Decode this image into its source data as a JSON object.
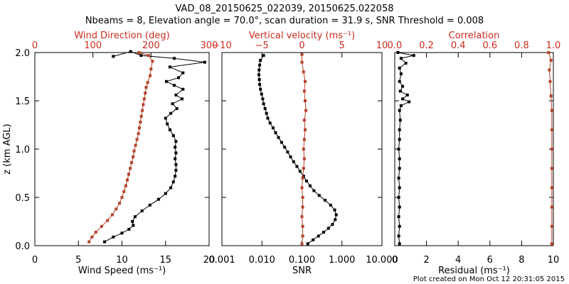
{
  "title_line1": "VAD_08_20150625_022039, 20150625.022058",
  "title_line2": "Nbeams = 8, Elevation angle = 70.0°, scan duration = 31.9 s, SNR Threshold = 0.008",
  "footer": "Plot created on Mon Oct 12 20:31:05 2015",
  "colors": {
    "black": "#000000",
    "red": "#b5422a",
    "axis_red": "#cc2b1c"
  },
  "chart_data": [
    {
      "type": "line",
      "panel": "left",
      "ylabel": "z (km AGL)",
      "ylim": [
        0.0,
        2.0
      ],
      "yticks": [
        "0.0",
        "0.5",
        "1.0",
        "1.5",
        "2.0"
      ],
      "bottom_axis": {
        "label": "Wind Speed (ms⁻¹)",
        "range": [
          0,
          20
        ],
        "ticks": [
          "0",
          "5",
          "10",
          "15",
          "20"
        ]
      },
      "top_axis": {
        "label": "Wind Direction (deg)",
        "range": [
          0,
          360
        ],
        "ticks": [
          "0",
          "100",
          "200",
          "300"
        ],
        "color": "red"
      },
      "series": [
        {
          "axis": "bottom",
          "color": "black",
          "points": [
            [
              8.0,
              0.04
            ],
            [
              9.0,
              0.09
            ],
            [
              10.0,
              0.13
            ],
            [
              10.8,
              0.17
            ],
            [
              11.3,
              0.21
            ],
            [
              11.2,
              0.25
            ],
            [
              11.5,
              0.3
            ],
            [
              12.3,
              0.36
            ],
            [
              13.2,
              0.42
            ],
            [
              14.2,
              0.48
            ],
            [
              15.0,
              0.54
            ],
            [
              15.6,
              0.6
            ],
            [
              15.9,
              0.66
            ],
            [
              16.1,
              0.72
            ],
            [
              16.2,
              0.78
            ],
            [
              16.2,
              0.84
            ],
            [
              16.1,
              0.9
            ],
            [
              16.2,
              0.96
            ],
            [
              16.1,
              1.02
            ],
            [
              16.2,
              1.08
            ],
            [
              15.9,
              1.14
            ],
            [
              15.5,
              1.2
            ],
            [
              15.2,
              1.26
            ],
            [
              15.0,
              1.32
            ],
            [
              15.6,
              1.37
            ],
            [
              16.3,
              1.42
            ],
            [
              15.8,
              1.47
            ],
            [
              16.9,
              1.52
            ],
            [
              16.2,
              1.56
            ],
            [
              17.0,
              1.62
            ],
            [
              16.0,
              1.66
            ],
            [
              15.1,
              1.7
            ],
            [
              16.5,
              1.74
            ],
            [
              17.0,
              1.79
            ],
            [
              15.5,
              1.85
            ],
            [
              19.5,
              1.9
            ],
            [
              16.0,
              1.94
            ],
            [
              12.2,
              1.97
            ],
            [
              11.0,
              2.01
            ],
            [
              9.0,
              1.96
            ]
          ]
        },
        {
          "axis": "top",
          "color": "red",
          "points": [
            [
              112,
              0.04
            ],
            [
              118,
              0.09
            ],
            [
              126,
              0.14
            ],
            [
              138,
              0.2
            ],
            [
              150,
              0.26
            ],
            [
              160,
              0.32
            ],
            [
              168,
              0.38
            ],
            [
              175,
              0.44
            ],
            [
              180,
              0.5
            ],
            [
              184,
              0.56
            ],
            [
              188,
              0.62
            ],
            [
              191,
              0.68
            ],
            [
              194,
              0.74
            ],
            [
              197,
              0.8
            ],
            [
              200,
              0.86
            ],
            [
              203,
              0.92
            ],
            [
              205,
              0.98
            ],
            [
              208,
              1.04
            ],
            [
              211,
              1.1
            ],
            [
              214,
              1.16
            ],
            [
              216,
              1.22
            ],
            [
              218,
              1.28
            ],
            [
              220,
              1.34
            ],
            [
              222,
              1.4
            ],
            [
              224,
              1.46
            ],
            [
              226,
              1.52
            ],
            [
              228,
              1.58
            ],
            [
              230,
              1.64
            ],
            [
              233,
              1.69
            ],
            [
              238,
              1.76
            ],
            [
              240,
              1.83
            ],
            [
              243,
              1.91
            ],
            [
              235,
              1.97
            ],
            [
              215,
              2.0
            ]
          ]
        }
      ]
    },
    {
      "type": "line",
      "panel": "middle",
      "ylim": [
        0.0,
        2.0
      ],
      "bottom_axis": {
        "label": "SNR",
        "scale": "log",
        "range": [
          0.001,
          10
        ],
        "ticks": [
          "0.001",
          "0.010",
          "0.100",
          "1.000",
          "10.000"
        ]
      },
      "top_axis": {
        "label": "Vertical velocity (ms⁻¹)",
        "range": [
          -10,
          10
        ],
        "ticks": [
          "−10",
          "−5",
          "0",
          "5",
          "10"
        ],
        "color": "red"
      },
      "series": [
        {
          "axis": "bottom",
          "color": "black",
          "points": [
            [
              0.14,
              0.02
            ],
            [
              0.19,
              0.06
            ],
            [
              0.26,
              0.1
            ],
            [
              0.35,
              0.14
            ],
            [
              0.46,
              0.18
            ],
            [
              0.58,
              0.22
            ],
            [
              0.68,
              0.27
            ],
            [
              0.72,
              0.32
            ],
            [
              0.66,
              0.37
            ],
            [
              0.52,
              0.42
            ],
            [
              0.38,
              0.47
            ],
            [
              0.27,
              0.52
            ],
            [
              0.2,
              0.57
            ],
            [
              0.16,
              0.62
            ],
            [
              0.13,
              0.67
            ],
            [
              0.11,
              0.72
            ],
            [
              0.09,
              0.77
            ],
            [
              0.075,
              0.82
            ],
            [
              0.062,
              0.87
            ],
            [
              0.052,
              0.92
            ],
            [
              0.044,
              0.97
            ],
            [
              0.037,
              1.02
            ],
            [
              0.031,
              1.07
            ],
            [
              0.026,
              1.12
            ],
            [
              0.022,
              1.17
            ],
            [
              0.019,
              1.22
            ],
            [
              0.016,
              1.27
            ],
            [
              0.014,
              1.32
            ],
            [
              0.013,
              1.37
            ],
            [
              0.012,
              1.42
            ],
            [
              0.011,
              1.47
            ],
            [
              0.0105,
              1.52
            ],
            [
              0.0098,
              1.57
            ],
            [
              0.0092,
              1.62
            ],
            [
              0.0088,
              1.67
            ],
            [
              0.0086,
              1.72
            ],
            [
              0.0084,
              1.77
            ],
            [
              0.0085,
              1.82
            ],
            [
              0.0088,
              1.87
            ],
            [
              0.0092,
              1.92
            ],
            [
              0.011,
              1.97
            ]
          ]
        },
        {
          "axis": "top",
          "color": "red",
          "points": [
            [
              0.0,
              0.02
            ],
            [
              0.1,
              0.1
            ],
            [
              0.1,
              0.2
            ],
            [
              0.0,
              0.3
            ],
            [
              0.1,
              0.4
            ],
            [
              0.1,
              0.5
            ],
            [
              0.0,
              0.6
            ],
            [
              0.1,
              0.7
            ],
            [
              0.2,
              0.8
            ],
            [
              0.3,
              0.9
            ],
            [
              0.2,
              1.0
            ],
            [
              0.3,
              1.1
            ],
            [
              0.4,
              1.2
            ],
            [
              0.3,
              1.3
            ],
            [
              0.5,
              1.4
            ],
            [
              0.4,
              1.5
            ],
            [
              0.3,
              1.6
            ],
            [
              0.4,
              1.7
            ],
            [
              0.2,
              1.8
            ],
            [
              0.0,
              1.9
            ],
            [
              0.0,
              1.98
            ]
          ]
        }
      ]
    },
    {
      "type": "line",
      "panel": "right",
      "ylim": [
        0.0,
        2.0
      ],
      "bottom_axis": {
        "label": "Residual (ms⁻¹)",
        "range": [
          0,
          10
        ],
        "ticks": [
          "0",
          "2",
          "4",
          "6",
          "8",
          "10"
        ]
      },
      "top_axis": {
        "label": "Correlation",
        "range": [
          0.0,
          1.0
        ],
        "ticks": [
          "0.0",
          "0.2",
          "0.4",
          "0.6",
          "0.8",
          "1.0"
        ],
        "color": "red"
      },
      "series": [
        {
          "axis": "bottom",
          "color": "black",
          "points": [
            [
              0.3,
              0.02
            ],
            [
              0.25,
              0.1
            ],
            [
              0.3,
              0.2
            ],
            [
              0.25,
              0.3
            ],
            [
              0.3,
              0.4
            ],
            [
              0.25,
              0.5
            ],
            [
              0.3,
              0.6
            ],
            [
              0.25,
              0.7
            ],
            [
              0.3,
              0.8
            ],
            [
              0.3,
              0.9
            ],
            [
              0.25,
              1.0
            ],
            [
              0.3,
              1.1
            ],
            [
              0.3,
              1.2
            ],
            [
              0.35,
              1.3
            ],
            [
              0.3,
              1.4
            ],
            [
              0.4,
              1.45
            ],
            [
              0.9,
              1.49
            ],
            [
              0.5,
              1.52
            ],
            [
              0.8,
              1.56
            ],
            [
              0.35,
              1.6
            ],
            [
              0.5,
              1.65
            ],
            [
              0.3,
              1.7
            ],
            [
              0.4,
              1.78
            ],
            [
              0.3,
              1.84
            ],
            [
              0.7,
              1.89
            ],
            [
              0.4,
              1.94
            ],
            [
              1.2,
              1.97
            ],
            [
              0.2,
              2.0
            ]
          ]
        },
        {
          "axis": "top",
          "color": "red",
          "points": [
            [
              0.99,
              0.02
            ],
            [
              0.99,
              0.2
            ],
            [
              0.99,
              0.4
            ],
            [
              0.99,
              0.6
            ],
            [
              0.99,
              0.8
            ],
            [
              0.99,
              1.0
            ],
            [
              0.99,
              1.2
            ],
            [
              0.99,
              1.4
            ],
            [
              0.985,
              1.55
            ],
            [
              0.98,
              1.7
            ],
            [
              0.975,
              1.82
            ],
            [
              0.985,
              1.92
            ],
            [
              0.97,
              2.0
            ]
          ]
        }
      ]
    }
  ]
}
